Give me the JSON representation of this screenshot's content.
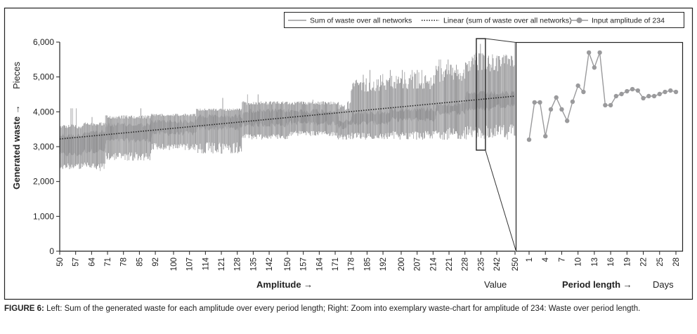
{
  "figure": {
    "caption_label": "FIGURE 6:",
    "caption_text": " Left: Sum of the generated waste for each amplitude over every period length; Right: Zoom into exemplary waste-chart for amplitude of 234: Waste over period length."
  },
  "chart_data": [
    {
      "type": "line",
      "panel": "left",
      "title": "",
      "xlabel": "Amplitude →",
      "xunit": "Value",
      "ylabel": "Generated waste →",
      "yunit": "Pieces",
      "xlim": [
        50,
        250
      ],
      "ylim": [
        0,
        6000
      ],
      "yticks": [
        0,
        1000,
        2000,
        3000,
        4000,
        5000,
        6000
      ],
      "ytick_labels": [
        "0",
        "1,000",
        "2,000",
        "3,000",
        "4,000",
        "5,000",
        "6,000"
      ],
      "xticks": [
        50,
        57,
        64,
        71,
        78,
        85,
        92,
        100,
        107,
        114,
        121,
        128,
        135,
        142,
        150,
        157,
        164,
        171,
        178,
        185,
        192,
        200,
        207,
        214,
        221,
        228,
        235,
        242,
        250
      ],
      "grid": false,
      "series": [
        {
          "name": "Sum of waste over all networks",
          "style": "solid",
          "color": "#9a9a9c",
          "description": "Dense oscillating series (one value per amplitude per period length); envelope approximated by segments",
          "envelope_segments": [
            {
              "x": [
                50,
                60
              ],
              "low": 2350,
              "high": 3650,
              "core_low": 2700,
              "core_high": 3400,
              "spike": 4100
            },
            {
              "x": [
                60,
                70
              ],
              "low": 2300,
              "high": 3700,
              "core_low": 2800,
              "core_high": 3500,
              "spike": 3850
            },
            {
              "x": [
                70,
                90
              ],
              "low": 2600,
              "high": 3900,
              "core_low": 3100,
              "core_high": 3700,
              "spike": 4100
            },
            {
              "x": [
                90,
                110
              ],
              "low": 2900,
              "high": 3950,
              "core_low": 3300,
              "core_high": 3800,
              "spike": 4200
            },
            {
              "x": [
                110,
                130
              ],
              "low": 2800,
              "high": 4100,
              "core_low": 3450,
              "core_high": 3950,
              "spike": 4400
            },
            {
              "x": [
                130,
                150
              ],
              "low": 3200,
              "high": 4300,
              "core_low": 3550,
              "core_high": 4100,
              "spike": 4500
            },
            {
              "x": [
                150,
                172
              ],
              "low": 3300,
              "high": 4300,
              "core_low": 3600,
              "core_high": 4100,
              "spike": 4350
            },
            {
              "x": [
                172,
                178
              ],
              "low": 3200,
              "high": 4300,
              "core_low": 3500,
              "core_high": 3800,
              "spike": 4300
            },
            {
              "x": [
                178,
                195
              ],
              "low": 3200,
              "high": 5100,
              "core_low": 3600,
              "core_high": 4050,
              "spike": 5200
            },
            {
              "x": [
                195,
                215
              ],
              "low": 3200,
              "high": 5150,
              "core_low": 3700,
              "core_high": 4150,
              "spike": 5200
            },
            {
              "x": [
                215,
                228
              ],
              "low": 3200,
              "high": 5400,
              "core_low": 3900,
              "core_high": 4300,
              "spike": 5500
            },
            {
              "x": [
                228,
                240
              ],
              "low": 3200,
              "high": 5700,
              "core_low": 4000,
              "core_high": 4600,
              "spike": 5950
            },
            {
              "x": [
                240,
                250
              ],
              "low": 3200,
              "high": 5700,
              "core_low": 4100,
              "core_high": 4600,
              "spike": 6000
            }
          ]
        },
        {
          "name": "Linear (sum of waste over all networks)",
          "style": "dotted",
          "color": "#222222",
          "x": [
            50,
            250
          ],
          "y": [
            3220,
            4450
          ]
        }
      ],
      "zoom_box": {
        "x_range": [
          233,
          237
        ],
        "y_range": [
          2900,
          6100
        ],
        "target": "right"
      }
    },
    {
      "type": "line",
      "panel": "right",
      "title": "",
      "xlabel": "Period length →",
      "xunit": "Days",
      "ylim": [
        0,
        6000
      ],
      "xlim": [
        0,
        28.5
      ],
      "xticks": [
        1,
        4,
        7,
        10,
        13,
        16,
        19,
        22,
        25,
        28
      ],
      "grid": false,
      "series": [
        {
          "name": "Input amplitude of 234",
          "style": "line-markers",
          "color": "#9a9a9c",
          "x": [
            1,
            2,
            3,
            4,
            5,
            6,
            7,
            8,
            9,
            10,
            11,
            12,
            13,
            14,
            15,
            16,
            17,
            18,
            19,
            20,
            21,
            22,
            23,
            24,
            25,
            26,
            27,
            28
          ],
          "y": [
            3200,
            4270,
            4270,
            3300,
            4070,
            4410,
            4070,
            3740,
            4290,
            4750,
            4570,
            5700,
            5270,
            5700,
            4190,
            4190,
            4450,
            4510,
            4590,
            4650,
            4610,
            4390,
            4450,
            4450,
            4510,
            4570,
            4610,
            4570
          ]
        }
      ]
    }
  ],
  "legend": {
    "placement": "top-right",
    "items": [
      {
        "label": "Sum of waste over all networks",
        "style": "solid"
      },
      {
        "label": "Linear (sum of waste over all networks)",
        "style": "dotted"
      },
      {
        "label": "Input amplitude of 234",
        "style": "line-markers"
      }
    ]
  }
}
